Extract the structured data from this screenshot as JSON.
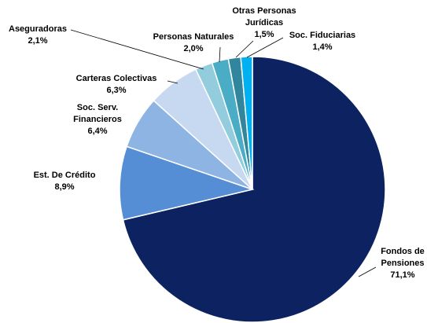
{
  "chart_data": {
    "type": "pie",
    "categories": [
      "Fondos de Pensiones",
      "Est. De Crédito",
      "Soc. Serv. Financieros",
      "Carteras Colectivas",
      "Aseguradoras",
      "Personas Naturales",
      "Otras Personas Jurídicas",
      "Soc. Fiduciarias"
    ],
    "values": [
      71.1,
      8.9,
      6.4,
      6.3,
      2.1,
      2.0,
      1.5,
      1.4
    ],
    "value_labels": [
      "71,1%",
      "8,9%",
      "6,4%",
      "6,3%",
      "2,1%",
      "2,0%",
      "1,5%",
      "1,4%"
    ],
    "colors": [
      "#0d2260",
      "#558ed5",
      "#8eb4e3",
      "#c6d9f1",
      "#93cddd",
      "#4bacc6",
      "#31859c",
      "#00b0f0"
    ]
  }
}
